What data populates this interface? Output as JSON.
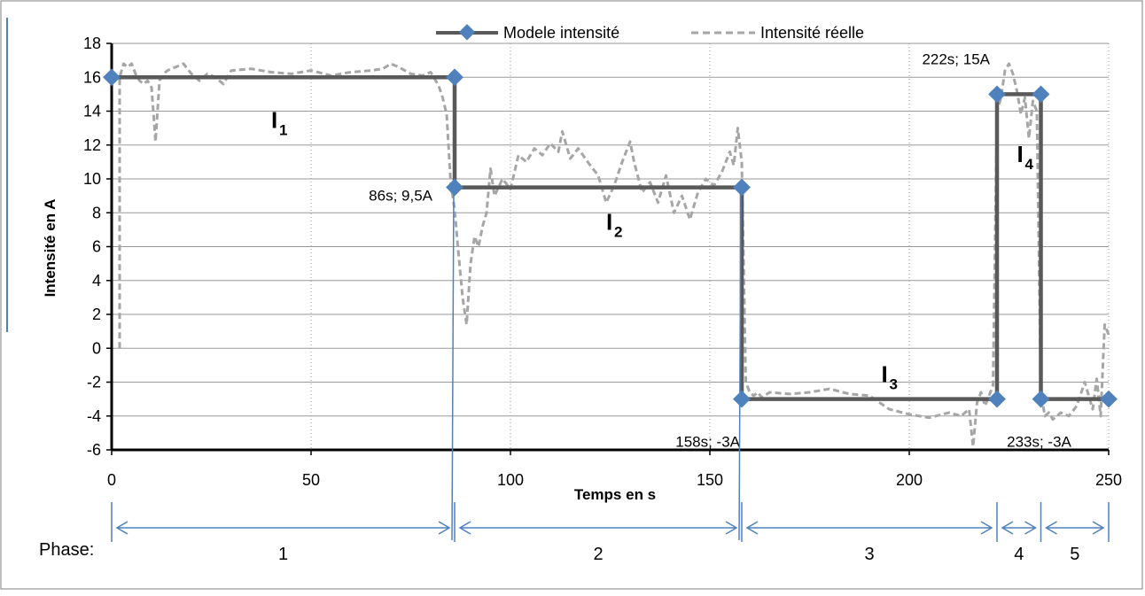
{
  "chart_data": {
    "type": "line",
    "xlabel": "Temps en s",
    "ylabel": "Intensité en A",
    "xlim": [
      0,
      250
    ],
    "ylim": [
      -6,
      18
    ],
    "x_ticks": [
      0,
      50,
      100,
      150,
      200,
      250
    ],
    "y_ticks": [
      -6,
      -4,
      -2,
      0,
      2,
      4,
      6,
      8,
      10,
      12,
      14,
      16,
      18
    ],
    "grid": {
      "horizontal": true,
      "vertical_dotted": true
    },
    "legend_position": "top-center",
    "series": [
      {
        "name": "Modele intensité",
        "color": "#595959",
        "marker": "diamond",
        "marker_color": "#4F81BD",
        "style": "solid",
        "x": [
          0,
          86,
          86,
          158,
          158,
          222,
          222,
          233,
          233,
          250
        ],
        "y": [
          16,
          16,
          9.5,
          9.5,
          -3,
          -3,
          15,
          15,
          -3,
          -3
        ]
      },
      {
        "name": "Intensité réelle",
        "color": "#A6A6A6",
        "style": "dashed",
        "x": [
          2,
          2,
          3,
          4,
          5,
          6,
          7,
          8,
          9,
          10,
          11,
          12,
          13,
          14,
          16,
          18,
          20,
          22,
          24,
          26,
          28,
          30,
          35,
          40,
          45,
          50,
          55,
          60,
          65,
          68,
          70,
          72,
          75,
          78,
          80,
          82,
          83,
          84,
          85,
          86,
          87,
          88,
          89,
          90,
          91,
          92,
          93,
          94,
          95,
          96,
          98,
          100,
          102,
          104,
          106,
          108,
          110,
          112,
          113,
          115,
          117,
          120,
          122,
          124,
          126,
          128,
          130,
          131,
          133,
          135,
          137,
          139,
          141,
          143,
          145,
          147,
          149,
          151,
          153,
          155,
          156,
          157,
          158,
          159,
          160,
          161,
          162,
          163,
          165,
          170,
          175,
          180,
          185,
          190,
          195,
          200,
          205,
          210,
          213,
          215,
          216,
          217,
          218,
          219,
          220,
          221,
          222,
          223,
          224,
          225,
          226,
          227,
          228,
          229,
          230,
          231,
          232,
          233,
          234,
          235,
          236,
          238,
          240,
          242,
          244,
          246,
          247,
          248,
          249,
          250
        ],
        "y": [
          0,
          16,
          16.8,
          16.6,
          16.8,
          16.2,
          15.8,
          15.6,
          15.8,
          15.4,
          12.2,
          15.8,
          16.2,
          16.4,
          16.6,
          16.8,
          16.2,
          15.8,
          16.2,
          16.0,
          15.6,
          16.4,
          16.5,
          16.3,
          16.2,
          16.4,
          16.1,
          16.3,
          16.4,
          16.5,
          16.8,
          16.6,
          16.2,
          16.1,
          16.3,
          15.5,
          14.8,
          13.8,
          9.8,
          8.2,
          5.5,
          3.0,
          1.4,
          5.0,
          6.6,
          6.0,
          7.2,
          8.0,
          10.6,
          9.0,
          10.0,
          9.4,
          11.4,
          11.0,
          11.8,
          11.4,
          12.1,
          11.6,
          12.8,
          11.2,
          11.8,
          10.8,
          10.2,
          8.6,
          9.6,
          11.0,
          12.2,
          11.0,
          9.2,
          9.8,
          8.6,
          10.2,
          8.0,
          9.0,
          7.6,
          9.2,
          10.0,
          9.6,
          10.4,
          11.6,
          10.8,
          13.0,
          11.0,
          -2.0,
          -2.6,
          -2.8,
          -2.6,
          -2.9,
          -2.6,
          -2.7,
          -2.6,
          -2.4,
          -2.7,
          -2.8,
          -3.6,
          -3.9,
          -4.1,
          -3.8,
          -4.0,
          -3.6,
          -5.8,
          -3.2,
          -2.6,
          -3.4,
          -2.8,
          -2.2,
          14.0,
          14.8,
          16.4,
          16.8,
          16.2,
          15.2,
          13.8,
          14.8,
          12.4,
          14.6,
          14.0,
          -2.6,
          -4.0,
          -3.8,
          -4.2,
          -3.8,
          -4.0,
          -3.4,
          -2.0,
          -3.6,
          -1.8,
          -4.0,
          1.4,
          0.8
        ]
      }
    ],
    "annotations": [
      {
        "text": "86s; 9,5A",
        "x": 86,
        "y": 9.5
      },
      {
        "text": "158s; -3A",
        "x": 158,
        "y": -3
      },
      {
        "text": "222s; 15A",
        "x": 222,
        "y": 15
      },
      {
        "text": "233s; -3A",
        "x": 233,
        "y": -3
      }
    ],
    "segment_labels": [
      {
        "main": "I",
        "sub": "1",
        "x": 40,
        "y": 13
      },
      {
        "main": "I",
        "sub": "2",
        "x": 124,
        "y": 7
      },
      {
        "main": "I",
        "sub": "3",
        "x": 193,
        "y": -2
      },
      {
        "main": "I",
        "sub": "4",
        "x": 227,
        "y": 11
      }
    ],
    "phases": {
      "label": "Phase:",
      "boundaries": [
        0,
        86,
        158,
        222,
        233,
        250
      ],
      "names": [
        "1",
        "2",
        "3",
        "4",
        "5"
      ]
    }
  }
}
